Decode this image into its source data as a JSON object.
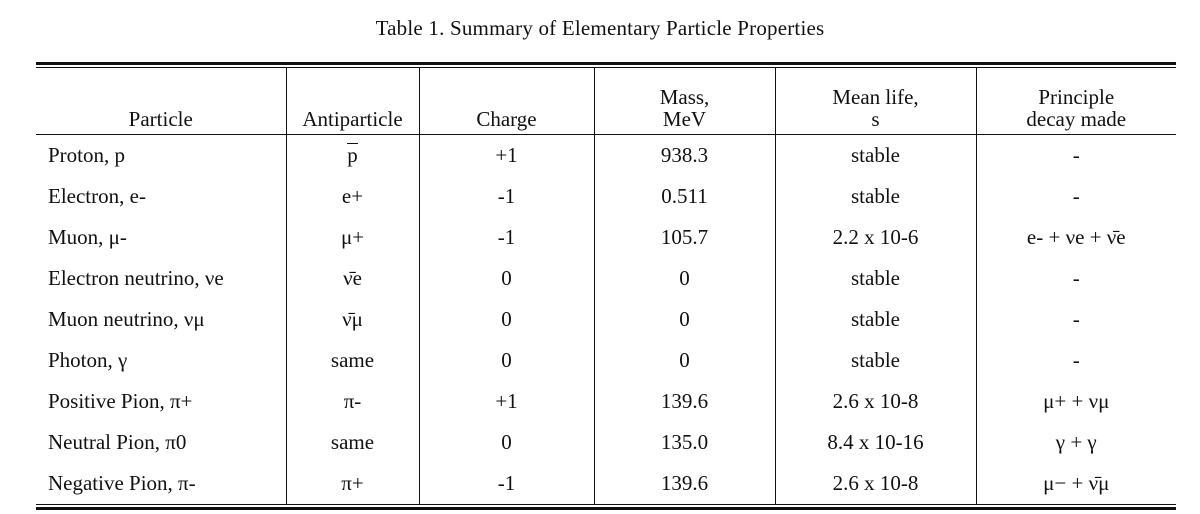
{
  "caption": "Table 1.  Summary of Elementary Particle Properties",
  "headers": {
    "particle": "Particle",
    "antiparticle": "Antiparticle",
    "charge": "Charge",
    "mass_line1": "Mass,",
    "mass_line2": "MeV",
    "life_line1": "Mean life,",
    "life_line2": "s",
    "decay_line1": "Principle",
    "decay_line2": "decay made"
  },
  "rows": [
    {
      "particle": "Proton, p",
      "antiparticle": "p",
      "charge": "+1",
      "mass": "938.3",
      "mean_life": "stable",
      "decay": "-"
    },
    {
      "particle": "Electron, e-",
      "antiparticle": "e+",
      "charge": "-1",
      "mass": "0.511",
      "mean_life": "stable",
      "decay": "-"
    },
    {
      "particle": "Muon, μ-",
      "antiparticle": "μ+",
      "charge": "-1",
      "mass": "105.7",
      "mean_life": "2.2 x 10-6",
      "decay": "e- + νe + ν̄e"
    },
    {
      "particle": "Electron neutrino, νe",
      "antiparticle": "ν̄e",
      "charge": "0",
      "mass": "0",
      "mean_life": "stable",
      "decay": "-"
    },
    {
      "particle": "Muon neutrino, νμ",
      "antiparticle": "ν̄μ",
      "charge": "0",
      "mass": "0",
      "mean_life": "stable",
      "decay": "-"
    },
    {
      "particle": "Photon, γ",
      "antiparticle": "same",
      "charge": "0",
      "mass": "0",
      "mean_life": "stable",
      "decay": "-"
    },
    {
      "particle": "Positive Pion, π+",
      "antiparticle": "π-",
      "charge": "+1",
      "mass": "139.6",
      "mean_life": "2.6 x 10-8",
      "decay": "μ+ + νμ"
    },
    {
      "particle": "Neutral Pion, π0",
      "antiparticle": "same",
      "charge": "0",
      "mass": "135.0",
      "mean_life": "8.4 x 10-16",
      "decay": "γ + γ"
    },
    {
      "particle": "Negative Pion, π-",
      "antiparticle": "π+",
      "charge": "-1",
      "mass": "139.6",
      "mean_life": "2.6 x 10-8",
      "decay": "μ− + ν̄μ"
    }
  ]
}
